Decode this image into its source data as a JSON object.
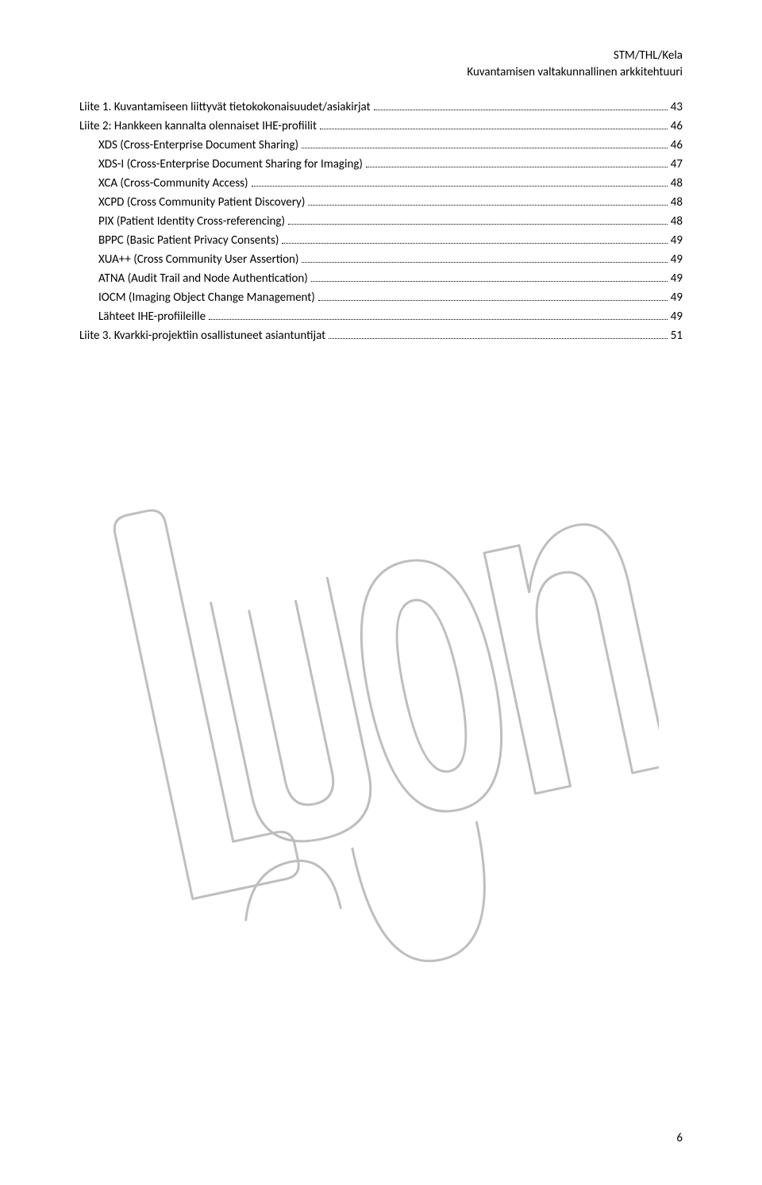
{
  "header": {
    "line1": "STM/THL/Kela",
    "line2": "Kuvantamisen valtakunnallinen arkkitehtuuri"
  },
  "toc": [
    {
      "label": "Liite 1. Kuvantamiseen liittyvät tietokokonaisuudet/asiakirjat",
      "page": "43",
      "indent": false
    },
    {
      "label": "Liite 2: Hankkeen kannalta olennaiset IHE-profiilit",
      "page": "46",
      "indent": false
    },
    {
      "label": "XDS (Cross-Enterprise Document Sharing)",
      "page": "46",
      "indent": true
    },
    {
      "label": "XDS-I (Cross-Enterprise Document Sharing for Imaging)",
      "page": "47",
      "indent": true
    },
    {
      "label": "XCA (Cross-Community Access)",
      "page": "48",
      "indent": true
    },
    {
      "label": "XCPD (Cross Community Patient Discovery)",
      "page": "48",
      "indent": true
    },
    {
      "label": "PIX (Patient Identity Cross-referencing)",
      "page": "48",
      "indent": true
    },
    {
      "label": "BPPC  (Basic Patient Privacy Consents)",
      "page": "49",
      "indent": true
    },
    {
      "label": "XUA++ (Cross Community User Assertion)",
      "page": "49",
      "indent": true
    },
    {
      "label": "ATNA (Audit Trail and Node Authentication)",
      "page": "49",
      "indent": true
    },
    {
      "label": "IOCM (Imaging Object Change Management)",
      "page": "49",
      "indent": true
    },
    {
      "label": "Lähteet IHE-profiileille",
      "page": "49",
      "indent": true
    },
    {
      "label": "Liite 3. Kvarkki-projektiin osallistuneet asiantuntijat",
      "page": "51",
      "indent": false
    }
  ],
  "page_number": "6",
  "watermark": {
    "stroke": "#b8b8b8",
    "stroke_width": 3,
    "opacity": 0.9
  }
}
